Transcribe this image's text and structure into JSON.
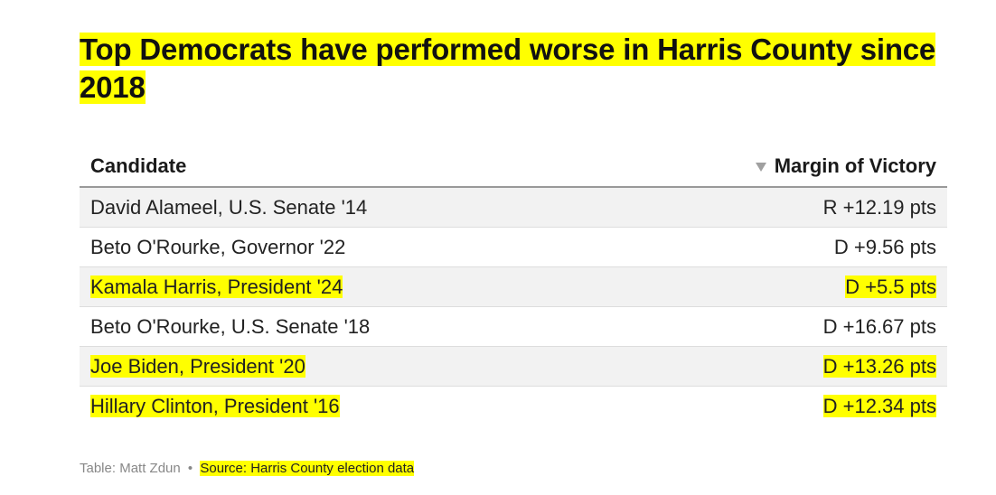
{
  "title": "Top Democrats have performed worse in Harris County since 2018",
  "colors": {
    "highlight": "#ffff00",
    "alt_row": "#f2f2f2",
    "header_rule": "#999999"
  },
  "chart_data": {
    "type": "table",
    "title": "Top Democrats have performed worse in Harris County since 2018",
    "columns": [
      "Candidate",
      "Margin of Victory"
    ],
    "sort": {
      "column": "Margin of Victory",
      "icon": "sort-desc-icon"
    },
    "rows": [
      {
        "candidate": "David Alameel, U.S. Senate '14",
        "margin": "R +12.19 pts",
        "highlighted": false
      },
      {
        "candidate": "Beto O'Rourke, Governor '22",
        "margin": "D +9.56 pts",
        "highlighted": false
      },
      {
        "candidate": "Kamala Harris, President '24",
        "margin": "D +5.5 pts",
        "highlighted": true
      },
      {
        "candidate": "Beto O'Rourke, U.S. Senate '18",
        "margin": "D +16.67 pts",
        "highlighted": false
      },
      {
        "candidate": "Joe Biden, President '20",
        "margin": "D +13.26 pts",
        "highlighted": true
      },
      {
        "candidate": "Hillary Clinton, President '16",
        "margin": "D +12.34 pts",
        "highlighted": true
      }
    ]
  },
  "footer": {
    "credit": "Table: Matt Zdun",
    "separator": "•",
    "source_label": "Source:",
    "source": "Harris County election data"
  }
}
